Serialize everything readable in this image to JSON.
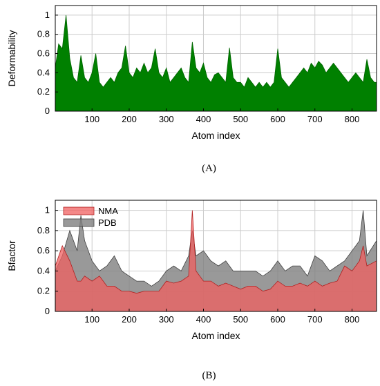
{
  "chart_data": [
    {
      "type": "area",
      "caption": "(A)",
      "xlabel": "Atom index",
      "ylabel": "Deformability",
      "xlim": [
        1,
        866
      ],
      "ylim": [
        0,
        1.1
      ],
      "xticks": [
        100,
        200,
        300,
        400,
        500,
        600,
        700,
        800
      ],
      "yticks": [
        0,
        0.2,
        0.4,
        0.6,
        0.8,
        1
      ],
      "grid": true,
      "colors": {
        "fill": "#008000",
        "grid": "#cccccc"
      },
      "series": [
        {
          "x": [
            1,
            10,
            20,
            30,
            40,
            50,
            60,
            70,
            80,
            90,
            100,
            110,
            120,
            130,
            140,
            150,
            160,
            170,
            180,
            190,
            200,
            210,
            220,
            230,
            240,
            250,
            260,
            270,
            280,
            290,
            300,
            310,
            320,
            330,
            340,
            350,
            360,
            370,
            380,
            390,
            400,
            410,
            420,
            430,
            440,
            450,
            460,
            470,
            480,
            490,
            500,
            510,
            520,
            530,
            540,
            550,
            560,
            570,
            580,
            590,
            600,
            610,
            620,
            630,
            640,
            650,
            660,
            670,
            680,
            690,
            700,
            710,
            720,
            730,
            740,
            750,
            760,
            770,
            780,
            790,
            800,
            810,
            820,
            830,
            840,
            850,
            860,
            866
          ],
          "values": [
            0.45,
            0.7,
            0.65,
            1.0,
            0.55,
            0.35,
            0.3,
            0.58,
            0.35,
            0.3,
            0.4,
            0.6,
            0.3,
            0.25,
            0.3,
            0.35,
            0.3,
            0.4,
            0.45,
            0.68,
            0.4,
            0.35,
            0.45,
            0.4,
            0.5,
            0.4,
            0.45,
            0.65,
            0.4,
            0.35,
            0.45,
            0.3,
            0.35,
            0.4,
            0.45,
            0.35,
            0.3,
            0.72,
            0.45,
            0.4,
            0.5,
            0.35,
            0.3,
            0.38,
            0.4,
            0.35,
            0.3,
            0.66,
            0.35,
            0.3,
            0.3,
            0.25,
            0.35,
            0.3,
            0.25,
            0.3,
            0.25,
            0.3,
            0.25,
            0.3,
            0.65,
            0.35,
            0.3,
            0.25,
            0.3,
            0.35,
            0.4,
            0.45,
            0.4,
            0.5,
            0.45,
            0.52,
            0.48,
            0.4,
            0.45,
            0.5,
            0.45,
            0.4,
            0.35,
            0.3,
            0.35,
            0.4,
            0.35,
            0.3,
            0.54,
            0.35,
            0.3,
            0.3
          ]
        }
      ]
    },
    {
      "type": "area",
      "caption": "(B)",
      "xlabel": "Atom index",
      "ylabel": "Bfactor",
      "xlim": [
        1,
        866
      ],
      "ylim": [
        0,
        1.1
      ],
      "xticks": [
        100,
        200,
        300,
        400,
        500,
        600,
        700,
        800
      ],
      "yticks": [
        0,
        0.2,
        0.4,
        0.6,
        0.8,
        1
      ],
      "grid": true,
      "legend": "top-left",
      "colors": {
        "NMA": "#f06060",
        "PDB": "#808080",
        "grid": "#cccccc"
      },
      "series": [
        {
          "name": "PDB",
          "x": [
            1,
            20,
            40,
            60,
            70,
            80,
            100,
            120,
            140,
            160,
            180,
            200,
            220,
            240,
            260,
            280,
            300,
            320,
            340,
            360,
            370,
            380,
            400,
            420,
            440,
            460,
            480,
            500,
            520,
            540,
            560,
            580,
            600,
            620,
            640,
            660,
            680,
            700,
            720,
            740,
            760,
            780,
            800,
            820,
            830,
            840,
            866
          ],
          "values": [
            0.4,
            0.55,
            0.8,
            0.6,
            0.95,
            0.7,
            0.5,
            0.4,
            0.45,
            0.55,
            0.4,
            0.35,
            0.3,
            0.3,
            0.25,
            0.3,
            0.4,
            0.45,
            0.4,
            0.55,
            0.8,
            0.55,
            0.6,
            0.5,
            0.45,
            0.5,
            0.4,
            0.4,
            0.4,
            0.4,
            0.35,
            0.4,
            0.5,
            0.4,
            0.45,
            0.45,
            0.35,
            0.55,
            0.5,
            0.4,
            0.45,
            0.5,
            0.6,
            0.7,
            1.0,
            0.55,
            0.7
          ]
        },
        {
          "name": "NMA",
          "x": [
            1,
            20,
            40,
            60,
            70,
            80,
            100,
            120,
            140,
            160,
            180,
            200,
            220,
            240,
            260,
            280,
            300,
            320,
            340,
            360,
            370,
            380,
            400,
            420,
            440,
            460,
            480,
            500,
            520,
            540,
            560,
            580,
            600,
            620,
            640,
            660,
            680,
            700,
            720,
            740,
            760,
            780,
            800,
            820,
            830,
            840,
            866
          ],
          "values": [
            0.45,
            0.65,
            0.5,
            0.3,
            0.3,
            0.35,
            0.3,
            0.35,
            0.25,
            0.25,
            0.2,
            0.2,
            0.18,
            0.2,
            0.2,
            0.2,
            0.3,
            0.28,
            0.3,
            0.35,
            1.0,
            0.4,
            0.3,
            0.3,
            0.25,
            0.28,
            0.25,
            0.22,
            0.25,
            0.25,
            0.2,
            0.22,
            0.3,
            0.25,
            0.25,
            0.28,
            0.25,
            0.3,
            0.25,
            0.28,
            0.3,
            0.45,
            0.4,
            0.5,
            0.65,
            0.45,
            0.5
          ]
        }
      ]
    }
  ]
}
